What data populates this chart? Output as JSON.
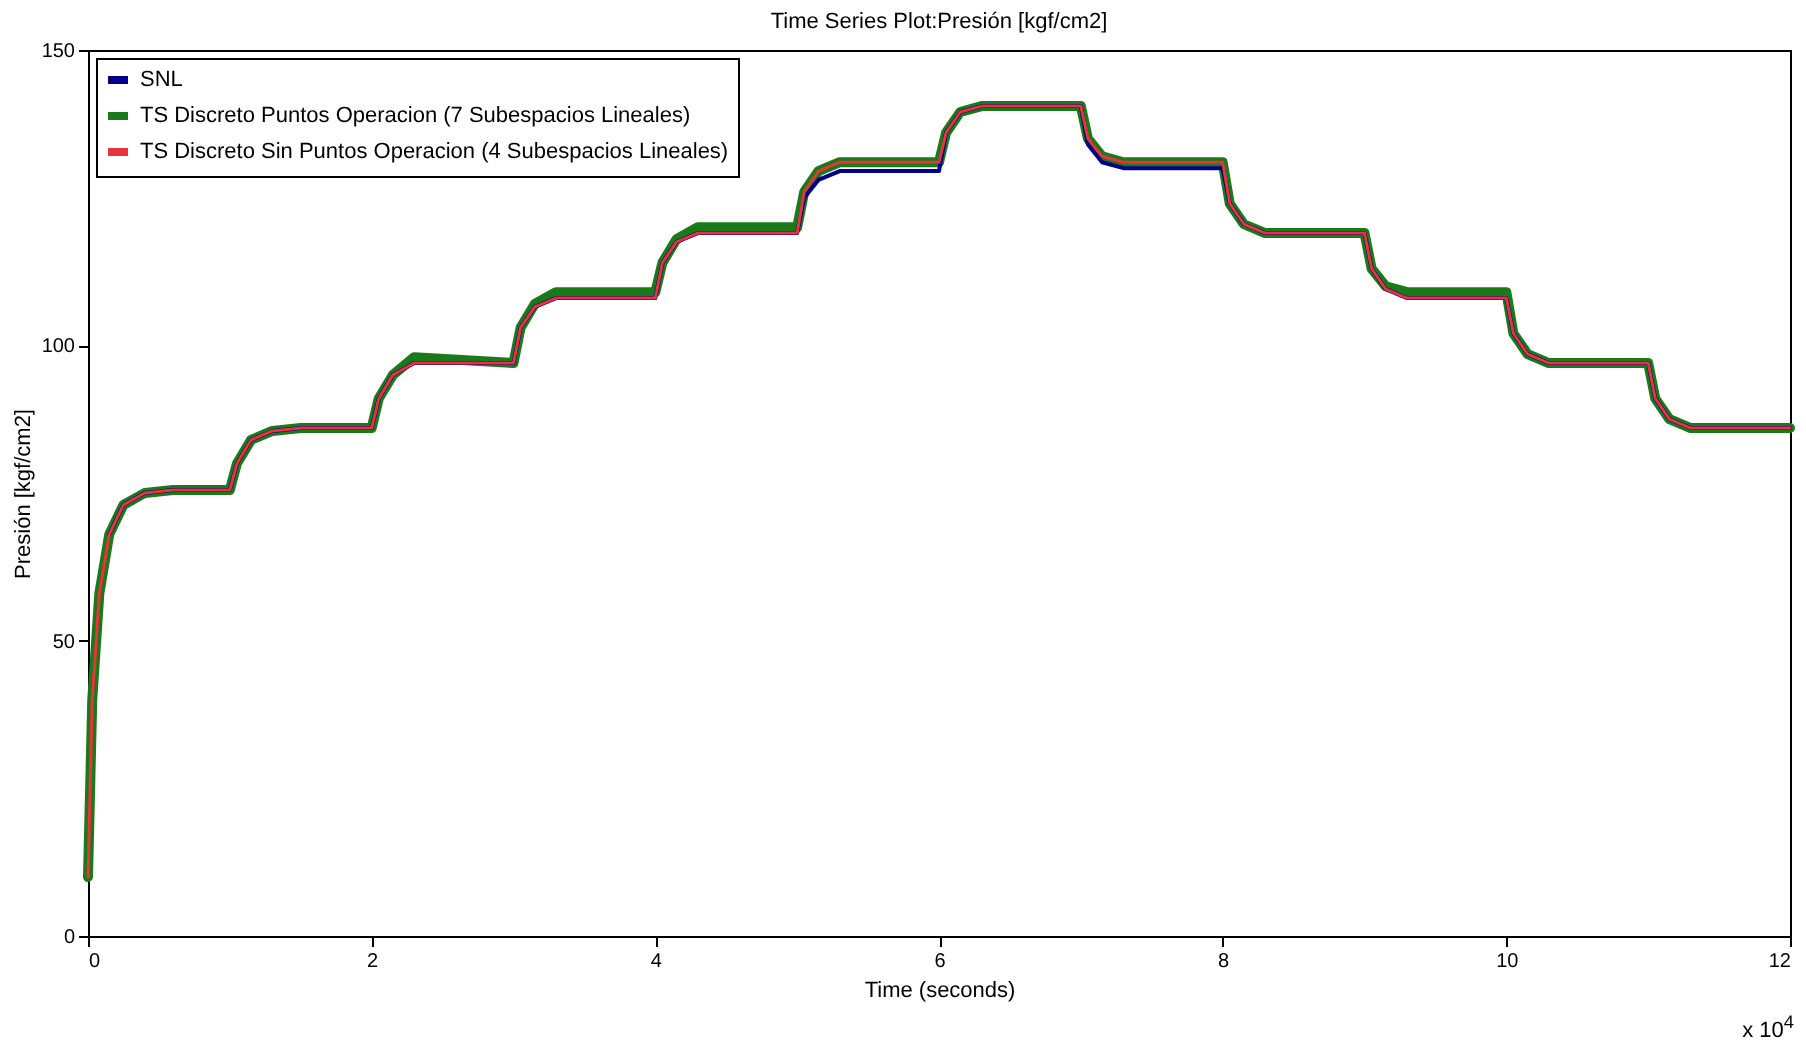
{
  "chart_data": {
    "type": "line",
    "title": "Time Series Plot:Presión [kgf/cm2]",
    "xlabel": "Time (seconds)",
    "ylabel": "Presión [kgf/cm2]",
    "annotations": [
      "x 10$^{4}$"
    ],
    "xlim": [
      0,
      12
    ],
    "xticks": [
      0,
      2,
      4,
      6,
      8,
      10,
      12
    ],
    "ylim": [
      0,
      150
    ],
    "yticks": [
      0,
      50,
      100,
      150
    ],
    "grid": false,
    "legend": "top left",
    "line_style": "solid",
    "x": [
      0,
      0.03,
      0.08,
      0.15,
      0.25,
      0.4,
      0.6,
      1.0,
      1.05,
      1.15,
      1.3,
      1.5,
      2.0,
      2.05,
      2.15,
      2.3,
      3.0,
      3.05,
      3.15,
      3.3,
      4.0,
      4.05,
      4.15,
      4.3,
      5.0,
      5.05,
      5.15,
      5.3,
      6.0,
      6.05,
      6.15,
      6.3,
      7.0,
      7.05,
      7.15,
      7.3,
      8.0,
      8.05,
      8.15,
      8.3,
      9.0,
      9.05,
      9.15,
      9.3,
      10.0,
      10.05,
      10.15,
      10.3,
      11.0,
      11.05,
      11.15,
      11.3,
      12
    ],
    "series": [
      {
        "name": "SNL",
        "color": "#00008b",
        "values": [
          null,
          null,
          null,
          68,
          73,
          75,
          75.5,
          75.5,
          80,
          84,
          85.5,
          86,
          86,
          91,
          95,
          97,
          97,
          103,
          106.5,
          108,
          108,
          114,
          117.5,
          119,
          119,
          125,
          128,
          129.5,
          129.5,
          136,
          139.5,
          140.5,
          140.5,
          134,
          131,
          130,
          130,
          124,
          120.5,
          119,
          119,
          113,
          109.5,
          108,
          108,
          102,
          98.5,
          97,
          97,
          91,
          87.5,
          86,
          86
        ]
      },
      {
        "name": "TS Discreto Puntos Operacion (7 Subespacios Lineales)",
        "color": "#1a7a1a",
        "values": [
          10,
          40,
          58,
          68,
          73,
          75,
          75.5,
          75.5,
          80,
          84,
          85.5,
          86,
          86,
          91,
          95,
          98,
          97,
          103,
          107,
          109,
          109,
          114,
          118,
          120,
          120,
          126,
          129.5,
          131,
          131,
          136,
          139.5,
          140.5,
          140.5,
          135,
          132,
          131,
          131,
          124,
          120.5,
          119,
          119,
          113,
          110,
          109,
          109,
          102,
          98.5,
          97,
          97,
          91,
          87.5,
          86,
          86
        ]
      },
      {
        "name": "TS Discreto Sin Puntos Operacion (4 Subespacios Lineales)",
        "color": "#e8323c",
        "values": [
          10,
          40,
          58,
          68,
          73,
          75,
          75.5,
          75.5,
          80,
          84,
          85.5,
          86,
          86,
          91,
          95,
          97,
          97,
          103,
          106.5,
          108,
          108,
          114,
          117.5,
          119,
          119,
          126,
          129.5,
          131,
          131,
          136,
          139.5,
          140.5,
          140.5,
          135,
          132,
          131,
          131,
          124,
          120.5,
          119,
          119,
          113,
          109.5,
          108,
          108,
          102,
          98.5,
          97,
          97,
          91,
          87.5,
          86,
          86
        ]
      }
    ]
  }
}
